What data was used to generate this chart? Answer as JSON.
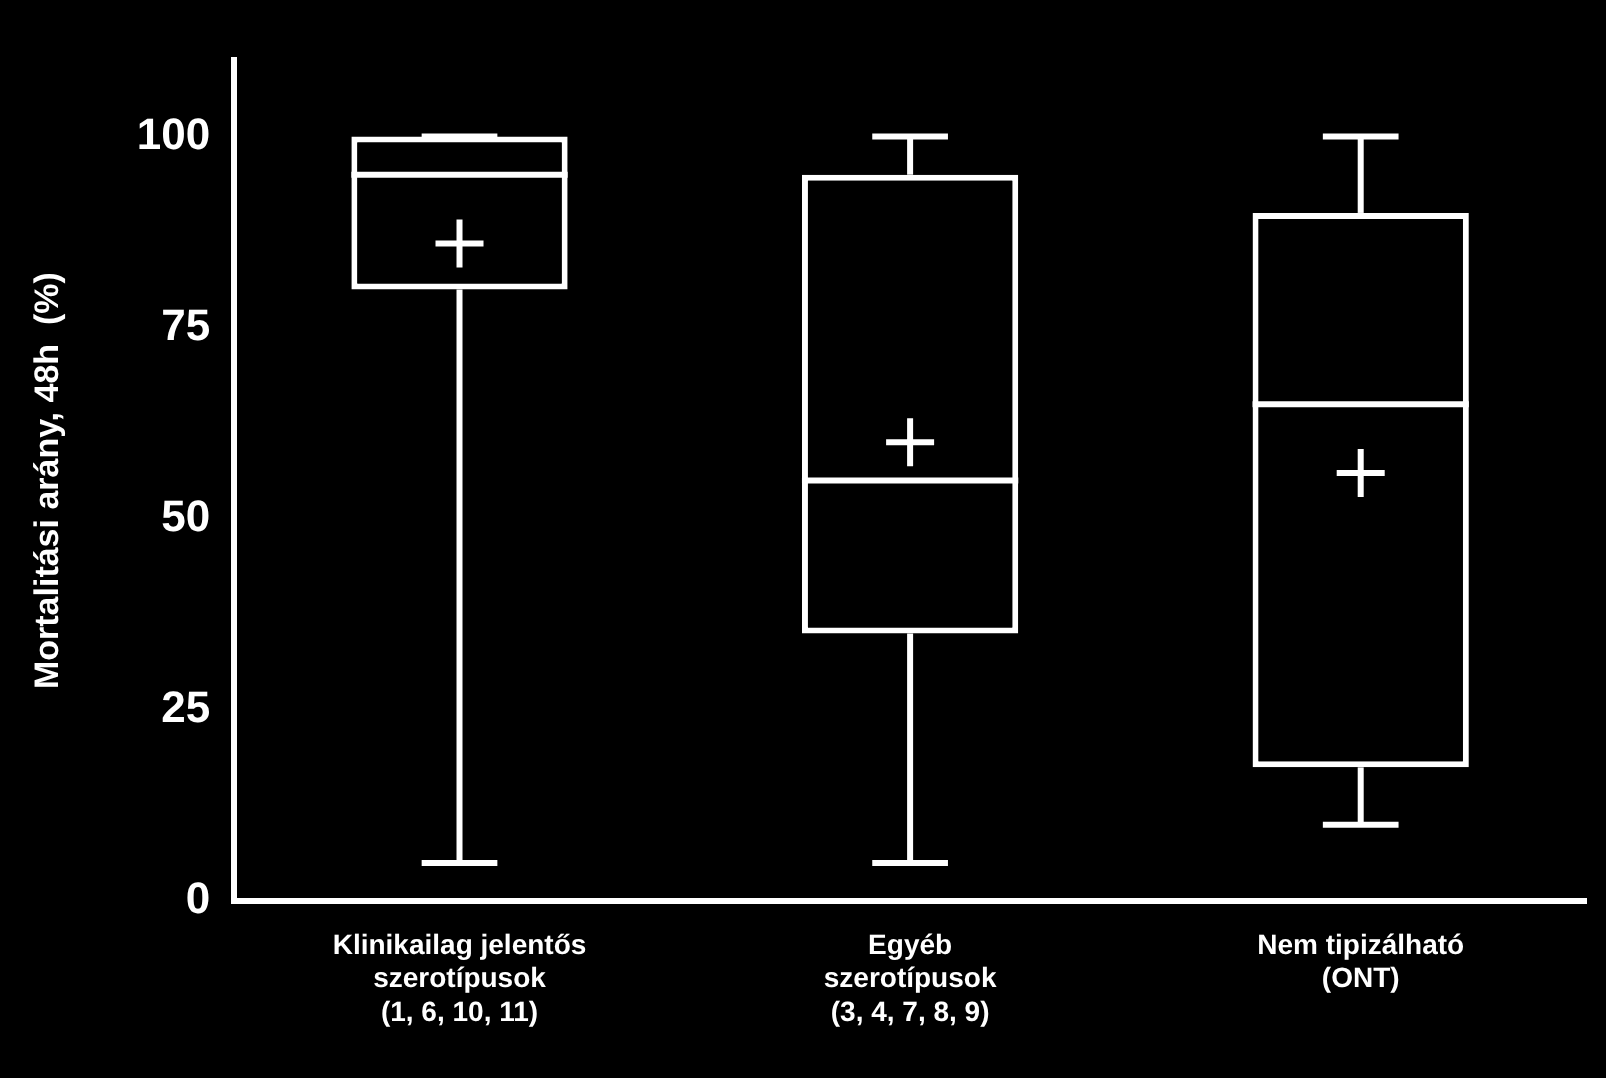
{
  "chart_data": {
    "type": "box",
    "ylabel": "Mortalitási arány, 48h  (%)",
    "categories": [
      "Klinikailag jelentős\nszerotípusok\n(1, 6, 10, 11)",
      "Egyéb\nszerotípusok\n(3, 4, 7, 8, 9)",
      "Nem tipizálható\n(ONT)"
    ],
    "boxes": [
      {
        "low": 5,
        "q1": 80,
        "median": 95,
        "q3": 100,
        "high": 100,
        "mean": 86
      },
      {
        "low": 5,
        "q1": 35,
        "median": 55,
        "q3": 95,
        "high": 100,
        "mean": 60
      },
      {
        "low": 10,
        "q1": 17.5,
        "median": 65,
        "q3": 90,
        "high": 100,
        "mean": 56
      }
    ],
    "color": "#ffffff",
    "ylim": [
      0,
      110
    ],
    "yticks": [
      0,
      25,
      50,
      75,
      100
    ]
  }
}
